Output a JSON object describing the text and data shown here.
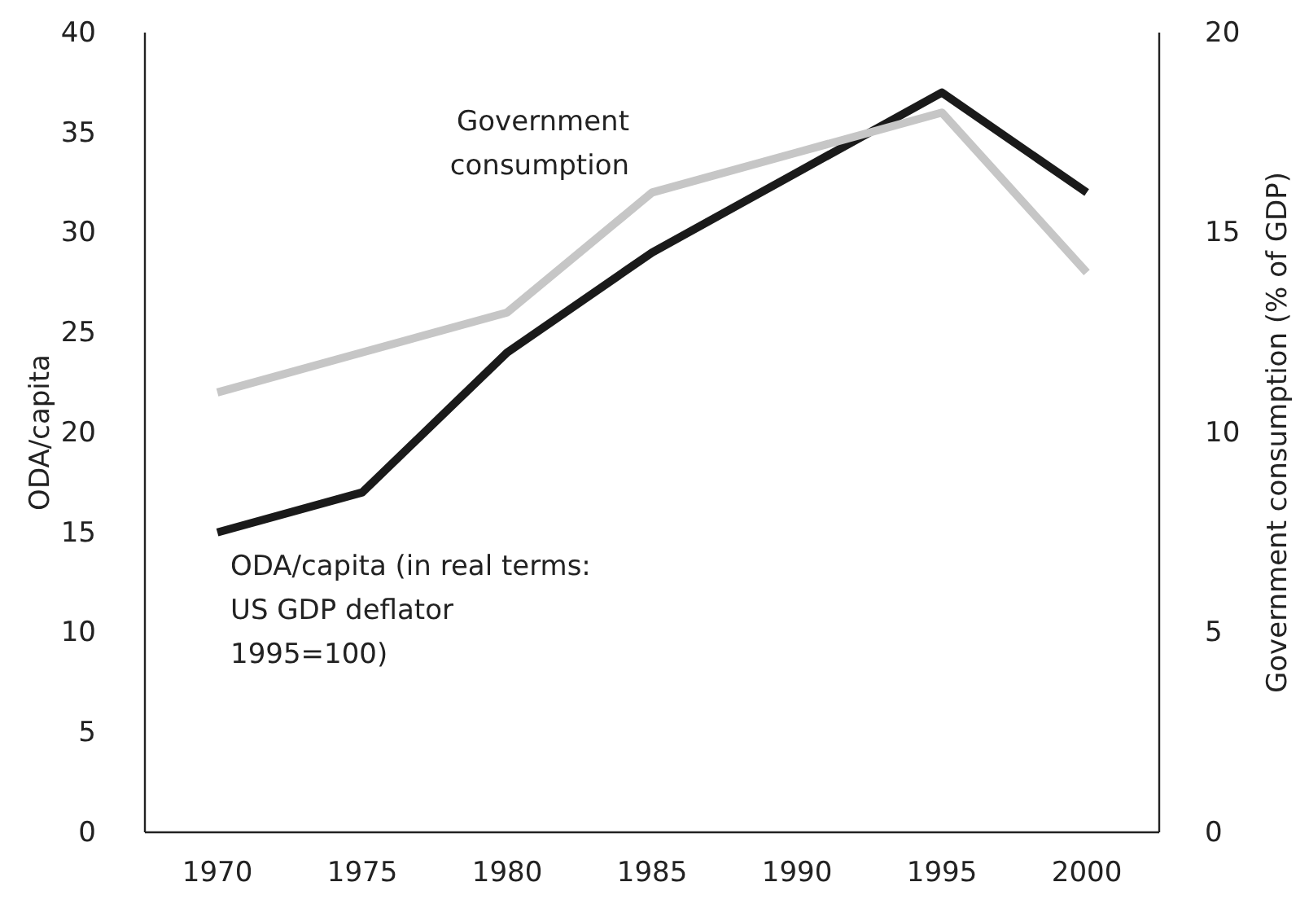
{
  "chart_data": {
    "type": "line",
    "x": [
      1970,
      1975,
      1980,
      1985,
      1990,
      1995,
      2000
    ],
    "xlim": [
      1967.5,
      2002.5
    ],
    "xticks": [
      1970,
      1975,
      1980,
      1985,
      1990,
      1995,
      2000
    ],
    "ylim": [
      0,
      40
    ],
    "yticks": [
      0,
      5,
      10,
      15,
      20,
      25,
      30,
      35,
      40
    ],
    "y2lim": [
      0,
      20
    ],
    "y2ticks": [
      0,
      5,
      10,
      15,
      20
    ],
    "ylabel": "ODA/capita",
    "y2label": "Government consumption (% of GDP)",
    "grid": false,
    "legend": false,
    "marker": "none",
    "line_style": "solid",
    "series": [
      {
        "name": "ODA/capita (in real terms: US GDP deflator 1995=100)",
        "color": "#1a1a1a",
        "values": [
          15,
          17,
          24,
          29,
          33,
          37,
          32
        ]
      },
      {
        "name": "Government consumption",
        "color": "#c6c6c6",
        "axis": "y2",
        "values": [
          11,
          12,
          13,
          16,
          17,
          18,
          14
        ]
      }
    ]
  }
}
